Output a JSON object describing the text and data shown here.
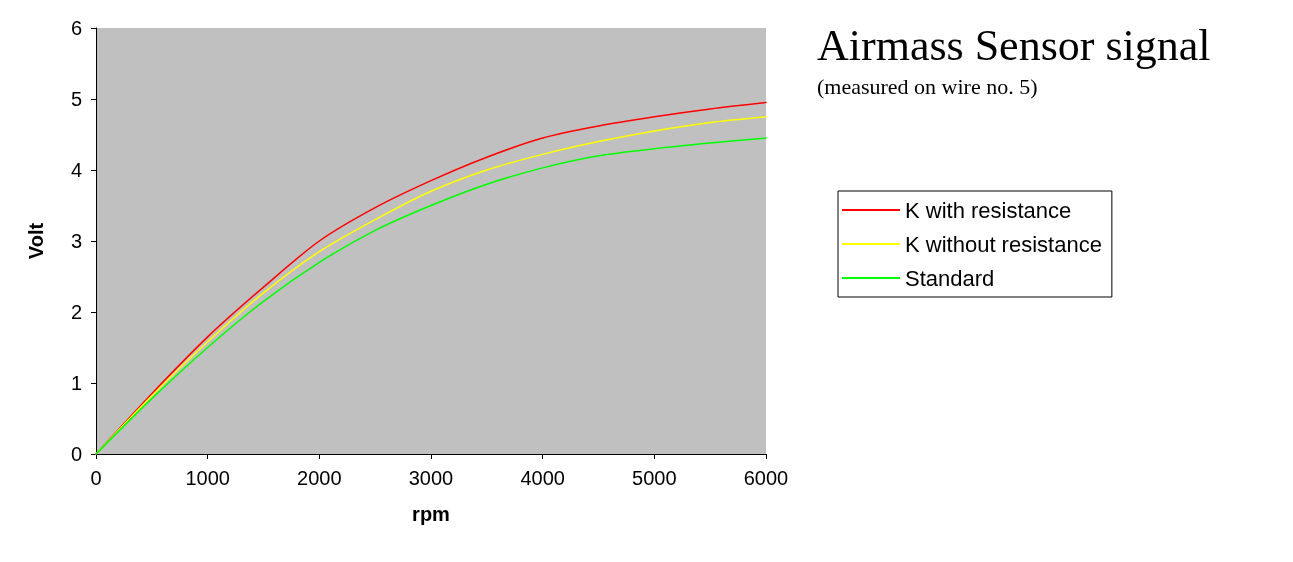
{
  "chart_data": {
    "type": "line",
    "title": "Airmass Sensor signal",
    "subtitle": "(measured on wire no. 5)",
    "xlabel": "rpm",
    "ylabel": "Volt",
    "x": [
      0,
      500,
      1000,
      1500,
      2000,
      2500,
      3000,
      3500,
      4000,
      4500,
      5000,
      5500,
      6000
    ],
    "series": [
      {
        "name": "K with resistance",
        "color": "#ff0000",
        "values": [
          0,
          0.85,
          1.65,
          2.35,
          3.0,
          3.47,
          3.85,
          4.18,
          4.45,
          4.62,
          4.75,
          4.86,
          4.95
        ]
      },
      {
        "name": "K without resistance",
        "color": "#ffff00",
        "values": [
          0,
          0.82,
          1.58,
          2.27,
          2.85,
          3.3,
          3.7,
          4.0,
          4.22,
          4.4,
          4.55,
          4.67,
          4.75
        ]
      },
      {
        "name": "Standard",
        "color": "#00ff00",
        "values": [
          0,
          0.78,
          1.5,
          2.15,
          2.7,
          3.15,
          3.5,
          3.8,
          4.03,
          4.2,
          4.3,
          4.38,
          4.45
        ]
      }
    ],
    "xlim": [
      0,
      6000
    ],
    "xticks": [
      0,
      1000,
      2000,
      3000,
      4000,
      5000,
      6000
    ],
    "ylim": [
      0,
      6
    ],
    "yticks": [
      0,
      1,
      2,
      3,
      4,
      5,
      6
    ],
    "grid": false,
    "legend": "right",
    "marker": "none",
    "line_style": "solid"
  }
}
